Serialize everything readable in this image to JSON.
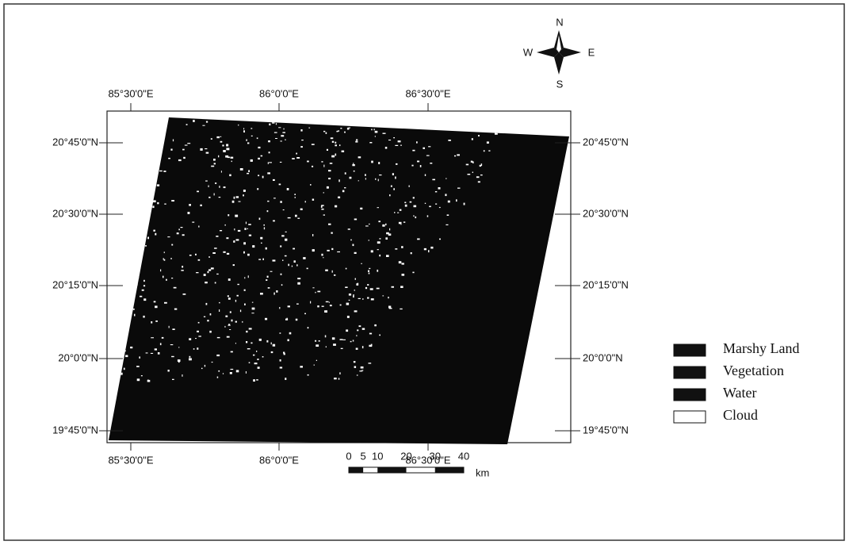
{
  "compass": {
    "north": "N",
    "west": "W",
    "east": "E",
    "south": "S"
  },
  "longitudes": [
    "85°30'0\"E",
    "86°0'0\"E",
    "86°30'0\"E"
  ],
  "latitudes": [
    "20°45'0\"N",
    "20°30'0\"N",
    "20°15'0\"N",
    "20°0'0\"N",
    "19°45'0\"N"
  ],
  "legend": [
    {
      "label": "Marshy Land"
    },
    {
      "label": "Vegetation"
    },
    {
      "label": "Water"
    },
    {
      "label": "Cloud"
    }
  ],
  "scale_bar": {
    "ticks": [
      0,
      5,
      10,
      20,
      30,
      40
    ],
    "unit": "km"
  }
}
